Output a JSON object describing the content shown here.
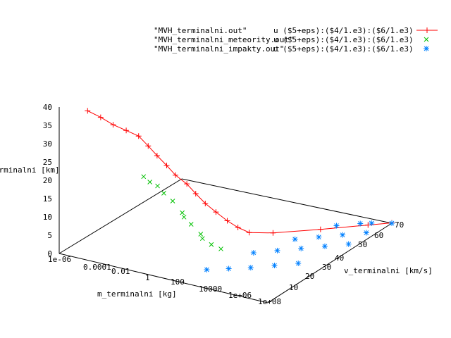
{
  "chart_data": {
    "type": "line",
    "title": "",
    "legend": {
      "placement": "top-right",
      "entries": [
        {
          "name": "\"MVH_terminalni.out\"",
          "expr": "u ($5+eps):($4/1.e3):($6/1.e3)",
          "color": "#ff0000",
          "marker": "+"
        },
        {
          "name": "\"MVH_terminalni_meteority.out\"",
          "expr": "u ($5+eps):($4/1.e3):($6/1.e3)",
          "color": "#00c000",
          "marker": "x"
        },
        {
          "name": "\"MVH_terminalni_impakty.out\"",
          "expr": "u ($5+eps):($4/1.e3):($6/1.e3)",
          "color": "#0080ff",
          "marker": "*"
        }
      ]
    },
    "xlabel": "m_terminalni [kg]",
    "ylabel": "v_terminalni [km/s]",
    "zlabel": "h_terminalni [km]",
    "x_scale": "log",
    "xlim": [
      1e-06,
      100000000.0
    ],
    "ylim": [
      0,
      70
    ],
    "zlim": [
      0,
      40
    ],
    "x_ticks": [
      "1e-06",
      "0.0001",
      "0.01",
      "1",
      "100",
      "10000",
      "1e+06",
      "1e+08"
    ],
    "y_ticks": [
      "10",
      "20",
      "30",
      "40",
      "50",
      "60",
      "70"
    ],
    "z_ticks": [
      "0",
      "5",
      "10",
      "15",
      "20",
      "25",
      "30",
      "35",
      "40"
    ],
    "series": [
      {
        "name": "\"MVH_terminalni.out\"",
        "points": [
          [
            3e-06,
            12,
            35.7
          ],
          [
            1e-05,
            15,
            33.5
          ],
          [
            3e-05,
            18,
            31
          ],
          [
            0.0001,
            21,
            29
          ],
          [
            0.0003,
            24,
            27
          ],
          [
            0.001,
            25,
            24.5
          ],
          [
            0.003,
            26,
            22
          ],
          [
            0.01,
            27,
            19.5
          ],
          [
            0.03,
            28,
            17
          ],
          [
            0.1,
            30,
            14.5
          ],
          [
            0.3,
            31,
            12
          ],
          [
            1,
            32,
            9.5
          ],
          [
            3,
            34,
            7
          ],
          [
            10,
            36,
            4.5
          ],
          [
            30,
            38,
            2.5
          ],
          [
            100,
            40,
            1
          ],
          [
            1000,
            45,
            0.3
          ],
          [
            100000.0,
            55,
            0.1
          ],
          [
            10000000.0,
            65,
            0.1
          ],
          [
            100000000.0,
            70,
            0.1
          ]
        ]
      },
      {
        "name": "\"MVH_terminalni_meteority.out\"",
        "points": [
          [
            0.01,
            14,
            20.5
          ],
          [
            0.02,
            15,
            19
          ],
          [
            0.05,
            16,
            18
          ],
          [
            0.1,
            17,
            16
          ],
          [
            0.3,
            18,
            14
          ],
          [
            1,
            19,
            11
          ],
          [
            1,
            20,
            9.5
          ],
          [
            3,
            20,
            8
          ],
          [
            10,
            21,
            5.5
          ],
          [
            10,
            22,
            4
          ],
          [
            30,
            23,
            2.5
          ],
          [
            100,
            24,
            1.5
          ]
        ]
      },
      {
        "name": "\"MVH_terminalni_impakty.out\"",
        "points": [
          [
            300,
            12,
            0
          ],
          [
            3000,
            16,
            0
          ],
          [
            30000,
            20,
            0
          ],
          [
            300000.0,
            25,
            0
          ],
          [
            3000000.0,
            30,
            0
          ],
          [
            3000,
            30,
            0
          ],
          [
            30000,
            35,
            0
          ],
          [
            300000.0,
            40,
            0
          ],
          [
            3000000.0,
            45,
            0
          ],
          [
            30000000.0,
            50,
            0
          ],
          [
            30000,
            45,
            0
          ],
          [
            300000.0,
            50,
            0
          ],
          [
            3000000.0,
            55,
            0
          ],
          [
            30000000.0,
            60,
            0
          ],
          [
            100000000.0,
            70,
            0
          ],
          [
            300000.0,
            60,
            0
          ],
          [
            3000000.0,
            65,
            0
          ],
          [
            10000000.0,
            67,
            0
          ]
        ]
      }
    ]
  }
}
